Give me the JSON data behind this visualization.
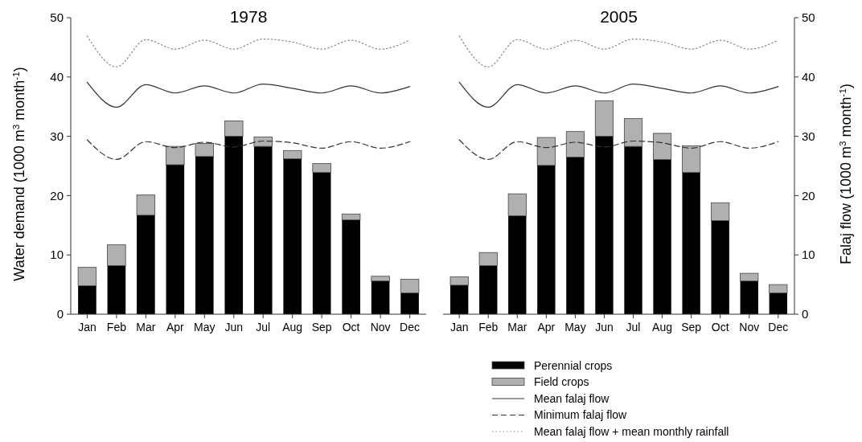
{
  "chart_data": [
    {
      "type": "bar",
      "title": "1978",
      "ylabel": "Water demand (1000 m$^{3}$ month$^{-1}$)",
      "categories": [
        "Jan",
        "Feb",
        "Mar",
        "Apr",
        "May",
        "Jun",
        "Jul",
        "Aug",
        "Sep",
        "Oct",
        "Nov",
        "Dec"
      ],
      "stacked": true,
      "ylim": [
        0,
        50
      ],
      "yticks": [
        0,
        10,
        20,
        30,
        40,
        50
      ],
      "legend": false,
      "marker": "none",
      "series": [
        {
          "color": "#000000",
          "values": [
            4.8,
            8.2,
            16.7,
            25.2,
            26.6,
            30.0,
            28.3,
            26.2,
            23.9,
            15.9,
            5.6,
            3.6
          ]
        },
        {
          "color": "#b0b0b0",
          "values": [
            3.1,
            3.5,
            3.4,
            3.1,
            2.2,
            2.6,
            1.6,
            1.4,
            1.5,
            1.0,
            0.8,
            2.3
          ]
        },
        {
          "type": "line",
          "color": "#333333",
          "line_style": "solid",
          "values": [
            39.1,
            34.9,
            38.7,
            37.3,
            38.5,
            37.3,
            38.8,
            38.1,
            37.3,
            38.5,
            37.3,
            38.4
          ]
        },
        {
          "type": "line",
          "color": "#333333",
          "line_style": "dashed",
          "values": [
            29.4,
            26.1,
            29.1,
            28.1,
            29.0,
            28.2,
            29.2,
            28.9,
            28.0,
            29.1,
            28.0,
            29.1
          ]
        },
        {
          "type": "line",
          "color": "#888888",
          "line_style": "dotted",
          "values": [
            46.9,
            41.7,
            46.3,
            44.7,
            46.2,
            44.7,
            46.4,
            45.9,
            44.7,
            46.2,
            44.7,
            46.2
          ]
        }
      ]
    },
    {
      "type": "bar",
      "title": "2005",
      "ylabel": "Falaj flow (1000 m$^{3}$ month$^{-1}$)",
      "categories": [
        "Jan",
        "Feb",
        "Mar",
        "Apr",
        "May",
        "Jun",
        "Jul",
        "Aug",
        "Sep",
        "Oct",
        "Nov",
        "Dec"
      ],
      "stacked": true,
      "ylim": [
        0,
        50
      ],
      "yticks": [
        0,
        10,
        20,
        30,
        40,
        50
      ],
      "legend": "bottom",
      "marker": "none",
      "series": [
        {
          "name": "Perennial crops",
          "color": "#000000",
          "values": [
            4.9,
            8.2,
            16.6,
            25.1,
            26.5,
            30.0,
            28.3,
            26.1,
            23.9,
            15.8,
            5.6,
            3.6
          ]
        },
        {
          "name": "Field crops",
          "color": "#b0b0b0",
          "values": [
            1.4,
            2.2,
            3.7,
            4.7,
            4.3,
            6.0,
            4.7,
            4.4,
            4.5,
            3.0,
            1.3,
            1.4
          ]
        },
        {
          "name": "Mean falaj flow",
          "type": "line",
          "color": "#333333",
          "line_style": "solid",
          "values": [
            39.1,
            34.9,
            38.7,
            37.3,
            38.5,
            37.3,
            38.8,
            38.1,
            37.3,
            38.5,
            37.3,
            38.4
          ]
        },
        {
          "name": "Minimum falaj flow",
          "type": "line",
          "color": "#333333",
          "line_style": "dashed",
          "values": [
            29.4,
            26.1,
            29.1,
            28.1,
            29.0,
            28.2,
            29.2,
            28.9,
            28.0,
            29.1,
            28.0,
            29.1
          ]
        },
        {
          "name": "Mean falaj flow + mean monthly rainfall",
          "type": "line",
          "color": "#888888",
          "line_style": "dotted",
          "values": [
            46.9,
            41.7,
            46.3,
            44.7,
            46.2,
            44.7,
            46.4,
            45.9,
            44.7,
            46.2,
            44.7,
            46.2
          ]
        }
      ]
    }
  ]
}
